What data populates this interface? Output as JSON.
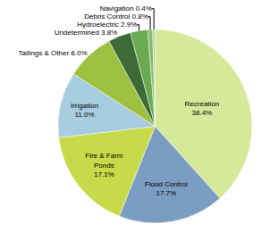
{
  "chart_data": {
    "type": "pie",
    "categories": [
      "Recreation\n38.4%",
      "Flood Control\n17.7%",
      "Fire & Farm\nPonds\n17.1%",
      "Irrigation\n11.0%",
      "Tailings & Other 8.0%",
      "Undetermined 3.8%",
      "Hydroelectric 2.9%",
      "Debris Control 0.8%",
      "Navigation 0.4%"
    ],
    "values": [
      38.4,
      17.7,
      17.1,
      11.0,
      8.0,
      3.8,
      2.9,
      0.8,
      0.4
    ],
    "colors": [
      "#d6e89a",
      "#7b9dc2",
      "#c8d94a",
      "#a8cce0",
      "#9dc040",
      "#3d6b35",
      "#6aaa50",
      "#88bb70",
      "#b0d890"
    ]
  }
}
